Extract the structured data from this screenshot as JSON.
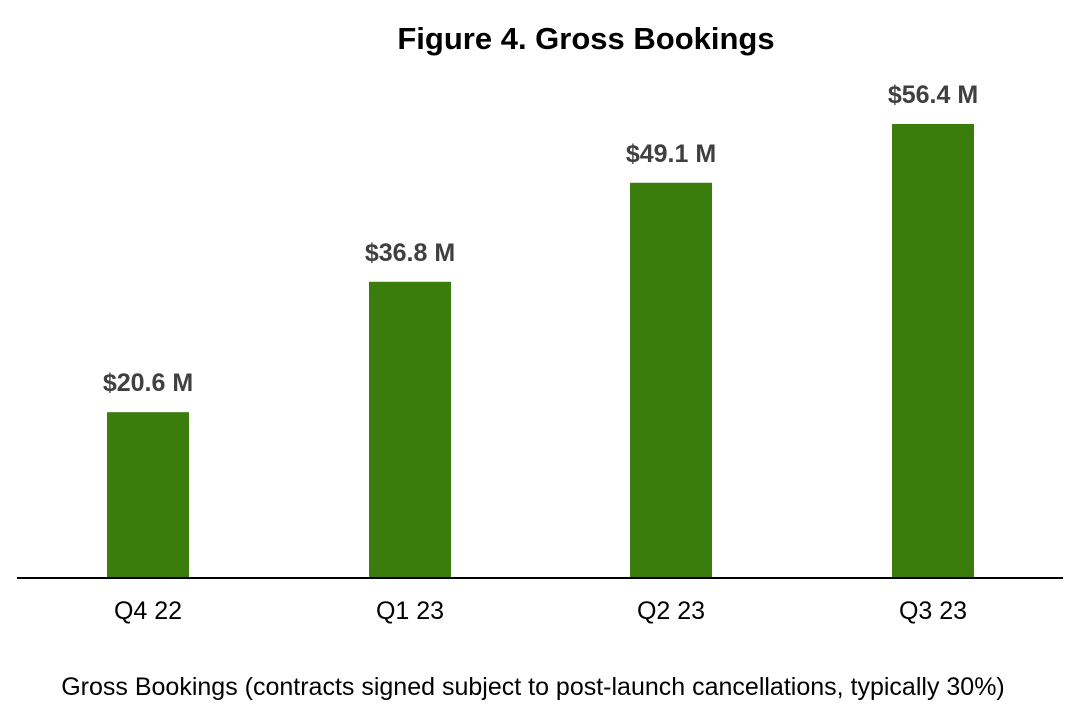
{
  "chart_data": {
    "type": "bar",
    "title": "Figure 4. Gross Bookings",
    "categories": [
      "Q4 22",
      "Q1 23",
      "Q2 23",
      "Q3 23"
    ],
    "values": [
      20.6,
      36.8,
      49.1,
      56.4
    ],
    "data_labels": [
      "$20.6 M",
      "$36.8 M",
      "$49.1 M",
      "$56.4 M"
    ],
    "xlabel": "",
    "ylabel": "",
    "ylim": [
      0,
      56.4
    ],
    "unit": "$ M",
    "grid": false,
    "legend": "none",
    "bar_color": "#3a7d0d",
    "caption": "Gross Bookings (contracts signed subject to post-launch cancellations, typically 30%)"
  }
}
